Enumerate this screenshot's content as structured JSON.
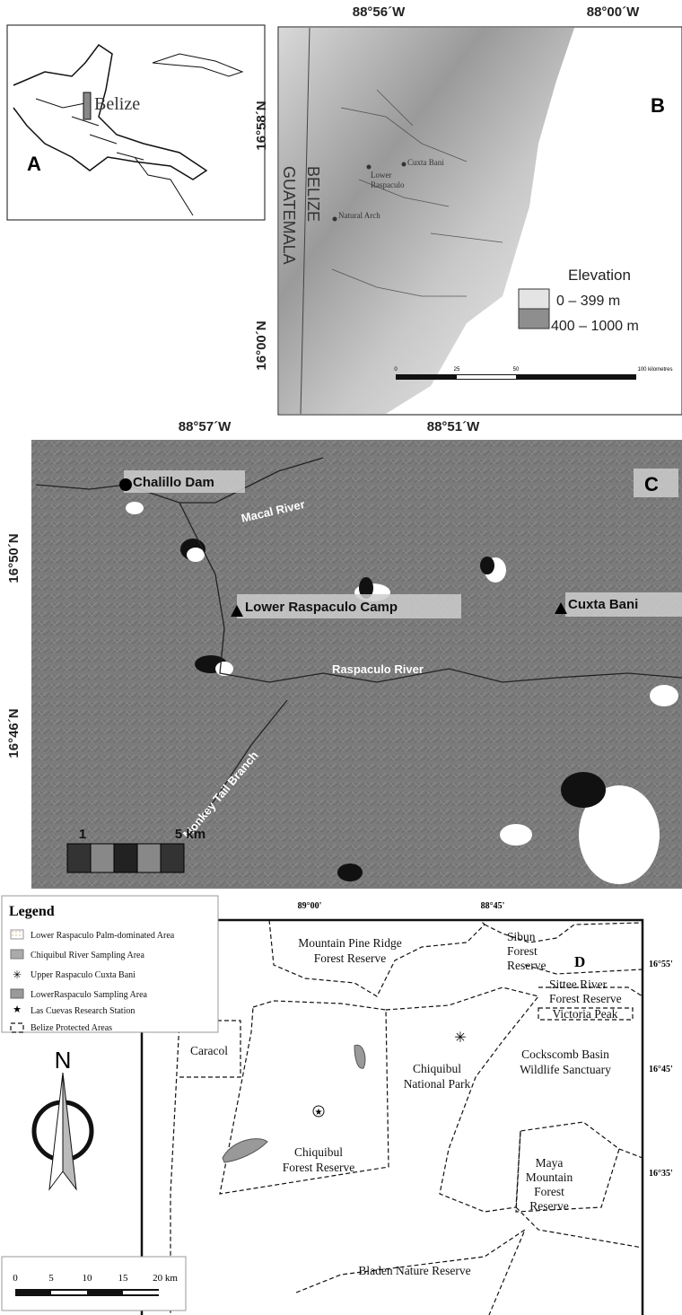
{
  "panel_a": {
    "label": "A",
    "country": "Belize"
  },
  "panel_b": {
    "label": "B",
    "lon_labels": [
      "88°56´W",
      "88°00´W"
    ],
    "lat_labels": [
      "16°58´N",
      "16°00´N"
    ],
    "countries": [
      "BELIZE",
      "GUATEMALA"
    ],
    "sites": [
      [
        "Cuxta Bani"
      ],
      [
        "Lower",
        "Raspaculo"
      ],
      [
        "Natural Arch"
      ]
    ],
    "legend": {
      "title": "Elevation",
      "items": [
        "0 – 399 m",
        "400 – 1000 m"
      ]
    },
    "scale": [
      "0",
      "25",
      "50",
      "100 kilometres"
    ]
  },
  "panel_c": {
    "label": "C",
    "lon_labels": [
      "88°57´W",
      "88°51´W"
    ],
    "lat_labels": [
      "16°50´N",
      "16°46´N"
    ],
    "sites": [
      "Chalillo Dam",
      "Lower Raspaculo Camp",
      "Cuxta Bani"
    ],
    "rivers": [
      "Macal River",
      "Raspaculo River",
      "Monkey Tail Branch"
    ],
    "scale": [
      "1",
      "5 km"
    ]
  },
  "panel_d": {
    "label": "D",
    "lon_labels": [
      "89°00'",
      "88°45'"
    ],
    "lat_labels": [
      "16°55'",
      "16°45'",
      "16°35'"
    ],
    "legend": {
      "title": "Legend",
      "items": [
        "Lower Raspaculo Palm-dominated Area",
        "Chiquibul River Sampling Area",
        "Upper Raspaculo Cuxta Bani",
        "LowerRaspaculo Sampling Area",
        "Las Cuevas Research Station",
        "Belize Protected Areas"
      ]
    },
    "areas": [
      [
        "Mountain Pine Ridge",
        "Forest Reserve"
      ],
      [
        "Sibun",
        "Forest",
        "Reserve"
      ],
      [
        "Sittee River",
        "Forest Reserve"
      ],
      [
        "Victoria Peak"
      ],
      [
        "Chiquibul",
        "National Park"
      ],
      [
        "Cockscomb Basin",
        "Wildlife Sanctuary"
      ],
      [
        "Caracol"
      ],
      [
        "Chiquibul",
        "Forest Reserve"
      ],
      [
        "Maya",
        "Mountain",
        "Forest",
        "Reserve"
      ],
      [
        "Bladen Nature Reserve"
      ]
    ],
    "north": "N",
    "scale": [
      "0",
      "5",
      "10",
      "15",
      "20 km"
    ]
  }
}
